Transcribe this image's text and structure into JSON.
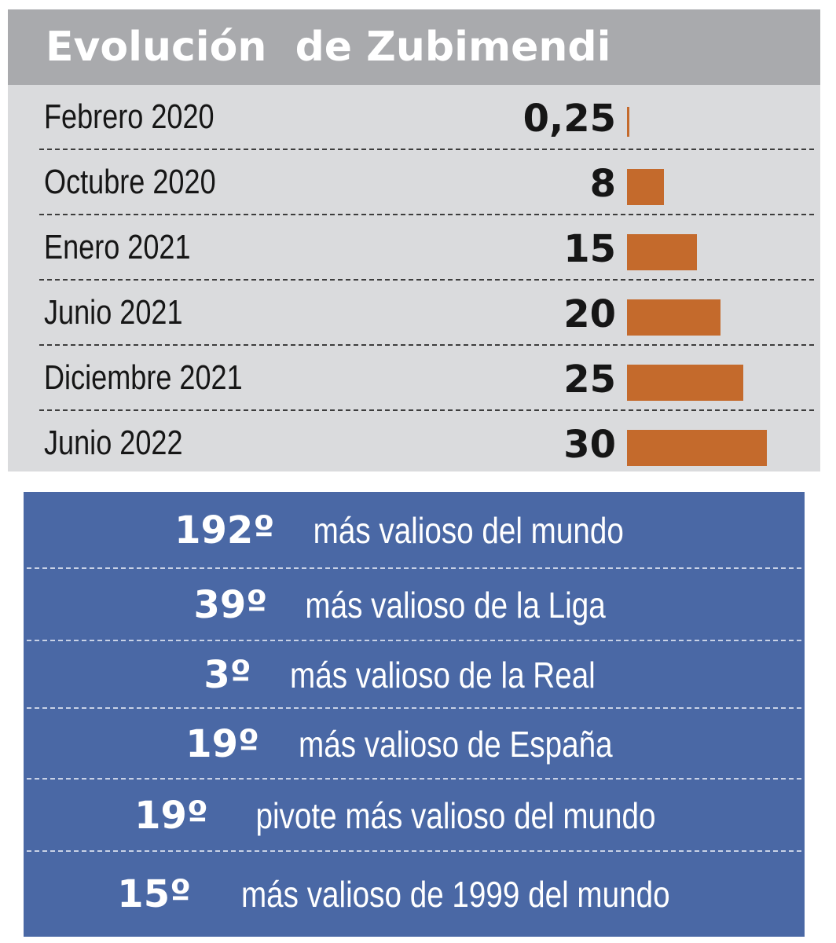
{
  "chart_data": {
    "type": "bar",
    "title": "Evolución  de Zubimendi",
    "categories": [
      "Febrero 2020",
      "Octubre 2020",
      "Enero 2021",
      "Junio 2021",
      "Diciembre 2021",
      "Junio 2022"
    ],
    "value_labels": [
      "0,25",
      "8",
      "15",
      "20",
      "25",
      "30"
    ],
    "values": [
      0.25,
      8,
      15,
      20,
      25,
      30
    ],
    "ylim": [
      0,
      30
    ],
    "orientation": "horizontal",
    "bar_color": "#c46a2c"
  },
  "rankings": [
    {
      "num": "192º",
      "text": "más valioso del mundo"
    },
    {
      "num": "39º",
      "text": "más valioso de la Liga"
    },
    {
      "num": "3º",
      "text": "más valioso de la Real"
    },
    {
      "num": "19º",
      "text": "más valioso de España"
    },
    {
      "num": "19º",
      "text": "pivote más valioso del mundo"
    },
    {
      "num": "15º",
      "text": "más valioso de 1999 del mundo"
    }
  ]
}
